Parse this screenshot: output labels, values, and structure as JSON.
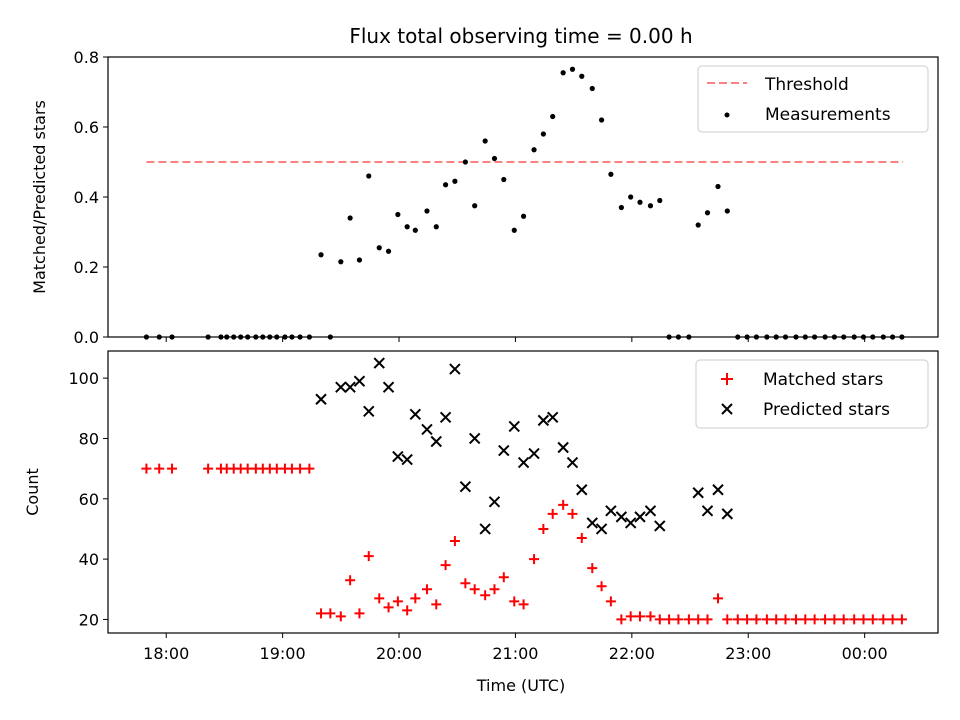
{
  "chart_data": [
    {
      "type": "scatter",
      "title": "Flux total observing time = 0.00 h",
      "ylabel": "Matched/Predicted stars",
      "ylim": [
        0,
        0.8
      ],
      "xlim": [
        17.5,
        24.63
      ],
      "yticks": [
        0.0,
        0.2,
        0.4,
        0.6,
        0.8
      ],
      "ytick_labels": [
        "0.0",
        "0.2",
        "0.4",
        "0.6",
        "0.8"
      ],
      "legend_position": "top-right",
      "threshold": {
        "name": "Threshold",
        "y": 0.5,
        "x_start": 17.83,
        "x_end": 24.33,
        "color": "#ff8080",
        "style": "dashed"
      },
      "series": [
        {
          "name": "Measurements",
          "color": "#000000",
          "marker": "dot",
          "points": [
            [
              17.83,
              0
            ],
            [
              17.94,
              0
            ],
            [
              18.05,
              0
            ],
            [
              18.36,
              0
            ],
            [
              18.47,
              0
            ],
            [
              18.52,
              0
            ],
            [
              18.58,
              0
            ],
            [
              18.64,
              0
            ],
            [
              18.7,
              0
            ],
            [
              18.77,
              0
            ],
            [
              18.83,
              0
            ],
            [
              18.89,
              0
            ],
            [
              18.95,
              0
            ],
            [
              19.02,
              0
            ],
            [
              19.08,
              0
            ],
            [
              19.15,
              0
            ],
            [
              19.23,
              0
            ],
            [
              19.41,
              0
            ],
            [
              19.33,
              0.235
            ],
            [
              19.5,
              0.215
            ],
            [
              19.58,
              0.34
            ],
            [
              19.66,
              0.22
            ],
            [
              19.74,
              0.46
            ],
            [
              19.83,
              0.255
            ],
            [
              19.91,
              0.245
            ],
            [
              19.99,
              0.35
            ],
            [
              20.07,
              0.315
            ],
            [
              20.14,
              0.305
            ],
            [
              20.24,
              0.36
            ],
            [
              20.32,
              0.315
            ],
            [
              20.4,
              0.435
            ],
            [
              20.48,
              0.445
            ],
            [
              20.57,
              0.5
            ],
            [
              20.65,
              0.375
            ],
            [
              20.74,
              0.56
            ],
            [
              20.82,
              0.51
            ],
            [
              20.9,
              0.45
            ],
            [
              20.99,
              0.305
            ],
            [
              21.07,
              0.345
            ],
            [
              21.16,
              0.535
            ],
            [
              21.24,
              0.58
            ],
            [
              21.32,
              0.63
            ],
            [
              21.41,
              0.755
            ],
            [
              21.49,
              0.765
            ],
            [
              21.57,
              0.745
            ],
            [
              21.66,
              0.71
            ],
            [
              21.74,
              0.62
            ],
            [
              21.82,
              0.465
            ],
            [
              21.91,
              0.37
            ],
            [
              21.99,
              0.4
            ],
            [
              22.07,
              0.385
            ],
            [
              22.16,
              0.375
            ],
            [
              22.24,
              0.39
            ],
            [
              22.32,
              0
            ],
            [
              22.4,
              0
            ],
            [
              22.49,
              0
            ],
            [
              22.57,
              0.32
            ],
            [
              22.65,
              0.355
            ],
            [
              22.74,
              0.43
            ],
            [
              22.82,
              0.36
            ],
            [
              22.91,
              0
            ],
            [
              22.99,
              0
            ],
            [
              23.07,
              0
            ],
            [
              23.16,
              0
            ],
            [
              23.24,
              0
            ],
            [
              23.32,
              0
            ],
            [
              23.41,
              0
            ],
            [
              23.49,
              0
            ],
            [
              23.57,
              0
            ],
            [
              23.66,
              0
            ],
            [
              23.74,
              0
            ],
            [
              23.82,
              0
            ],
            [
              23.91,
              0
            ],
            [
              23.99,
              0
            ],
            [
              24.07,
              0
            ],
            [
              24.16,
              0
            ],
            [
              24.24,
              0
            ],
            [
              24.32,
              0
            ]
          ]
        }
      ]
    },
    {
      "type": "scatter",
      "xlabel": "Time (UTC)",
      "ylabel": "Count",
      "ylim": [
        15.5,
        109
      ],
      "xlim": [
        17.5,
        24.63
      ],
      "yticks": [
        20,
        40,
        60,
        80,
        100
      ],
      "ytick_labels": [
        "20",
        "40",
        "60",
        "80",
        "100"
      ],
      "xticks": [
        18,
        19,
        20,
        21,
        22,
        23,
        24
      ],
      "xtick_labels": [
        "18:00",
        "19:00",
        "20:00",
        "21:00",
        "22:00",
        "23:00",
        "00:00"
      ],
      "legend_position": "top-right",
      "series": [
        {
          "name": "Matched stars",
          "color": "#ff0000",
          "marker": "plus",
          "points": [
            [
              17.83,
              70
            ],
            [
              17.94,
              70
            ],
            [
              18.05,
              70
            ],
            [
              18.36,
              70
            ],
            [
              18.47,
              70
            ],
            [
              18.52,
              70
            ],
            [
              18.58,
              70
            ],
            [
              18.64,
              70
            ],
            [
              18.7,
              70
            ],
            [
              18.77,
              70
            ],
            [
              18.83,
              70
            ],
            [
              18.89,
              70
            ],
            [
              18.95,
              70
            ],
            [
              19.02,
              70
            ],
            [
              19.08,
              70
            ],
            [
              19.15,
              70
            ],
            [
              19.23,
              70
            ],
            [
              19.33,
              22
            ],
            [
              19.41,
              22
            ],
            [
              19.5,
              21
            ],
            [
              19.58,
              33
            ],
            [
              19.66,
              22
            ],
            [
              19.74,
              41
            ],
            [
              19.83,
              27
            ],
            [
              19.91,
              24
            ],
            [
              19.99,
              26
            ],
            [
              20.07,
              23
            ],
            [
              20.14,
              27
            ],
            [
              20.24,
              30
            ],
            [
              20.32,
              25
            ],
            [
              20.4,
              38
            ],
            [
              20.48,
              46
            ],
            [
              20.57,
              32
            ],
            [
              20.65,
              30
            ],
            [
              20.74,
              28
            ],
            [
              20.82,
              30
            ],
            [
              20.9,
              34
            ],
            [
              20.99,
              26
            ],
            [
              21.07,
              25
            ],
            [
              21.16,
              40
            ],
            [
              21.24,
              50
            ],
            [
              21.32,
              55
            ],
            [
              21.41,
              58
            ],
            [
              21.49,
              55
            ],
            [
              21.57,
              47
            ],
            [
              21.66,
              37
            ],
            [
              21.74,
              31
            ],
            [
              21.82,
              26
            ],
            [
              21.91,
              20
            ],
            [
              21.99,
              21
            ],
            [
              22.07,
              21
            ],
            [
              22.16,
              21
            ],
            [
              22.24,
              20
            ],
            [
              22.32,
              20
            ],
            [
              22.4,
              20
            ],
            [
              22.49,
              20
            ],
            [
              22.57,
              20
            ],
            [
              22.65,
              20
            ],
            [
              22.74,
              27
            ],
            [
              22.82,
              20
            ],
            [
              22.91,
              20
            ],
            [
              22.99,
              20
            ],
            [
              23.07,
              20
            ],
            [
              23.16,
              20
            ],
            [
              23.24,
              20
            ],
            [
              23.32,
              20
            ],
            [
              23.41,
              20
            ],
            [
              23.49,
              20
            ],
            [
              23.57,
              20
            ],
            [
              23.66,
              20
            ],
            [
              23.74,
              20
            ],
            [
              23.82,
              20
            ],
            [
              23.91,
              20
            ],
            [
              23.99,
              20
            ],
            [
              24.07,
              20
            ],
            [
              24.16,
              20
            ],
            [
              24.24,
              20
            ],
            [
              24.32,
              20
            ]
          ]
        },
        {
          "name": "Predicted stars",
          "color": "#000000",
          "marker": "x",
          "points": [
            [
              19.33,
              93
            ],
            [
              19.5,
              97
            ],
            [
              19.58,
              97
            ],
            [
              19.66,
              99
            ],
            [
              19.74,
              89
            ],
            [
              19.83,
              105
            ],
            [
              19.91,
              97
            ],
            [
              19.99,
              74
            ],
            [
              20.07,
              73
            ],
            [
              20.14,
              88
            ],
            [
              20.24,
              83
            ],
            [
              20.32,
              79
            ],
            [
              20.4,
              87
            ],
            [
              20.48,
              103
            ],
            [
              20.57,
              64
            ],
            [
              20.65,
              80
            ],
            [
              20.74,
              50
            ],
            [
              20.82,
              59
            ],
            [
              20.9,
              76
            ],
            [
              20.99,
              84
            ],
            [
              21.07,
              72
            ],
            [
              21.16,
              75
            ],
            [
              21.24,
              86
            ],
            [
              21.32,
              87
            ],
            [
              21.41,
              77
            ],
            [
              21.49,
              72
            ],
            [
              21.57,
              63
            ],
            [
              21.66,
              52
            ],
            [
              21.74,
              50
            ],
            [
              21.82,
              56
            ],
            [
              21.91,
              54
            ],
            [
              21.99,
              52
            ],
            [
              22.07,
              54
            ],
            [
              22.16,
              56
            ],
            [
              22.24,
              51
            ],
            [
              22.57,
              62
            ],
            [
              22.65,
              56
            ],
            [
              22.74,
              63
            ],
            [
              22.82,
              55
            ]
          ]
        }
      ]
    }
  ]
}
